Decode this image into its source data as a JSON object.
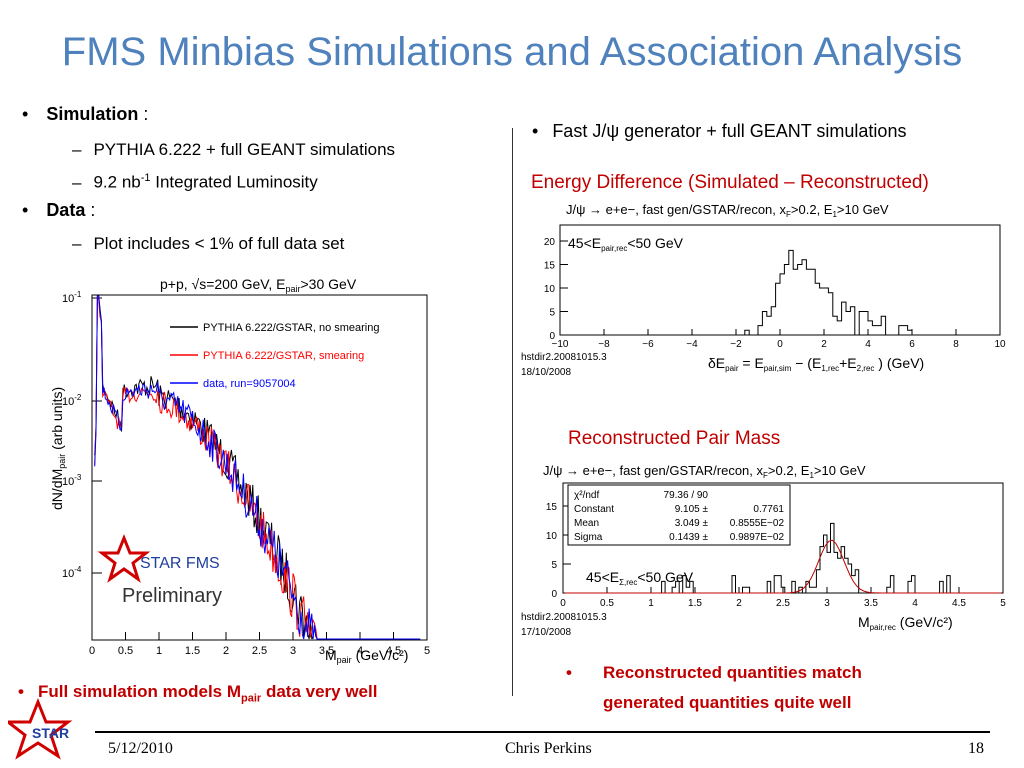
{
  "title": "FMS Minbias Simulations and Association Analysis",
  "left": {
    "simulation_label": "Simulation",
    "simulation_colon": " :",
    "sim_items": [
      "PYTHIA 6.222 + full GEANT simulations",
      "9.2 nb",
      "-1",
      " Integrated Luminosity"
    ],
    "data_label": "Data",
    "data_colon": " :",
    "data_items": [
      "Plot includes < 1% of full data set"
    ],
    "conclusion_pre": "Full simulation models M",
    "conclusion_sub": "pair",
    "conclusion_post": " data very well"
  },
  "right": {
    "bullet": "Fast J/ψ generator + full GEANT simulations",
    "energy_heading": "Energy Difference (Simulated – Reconstructed)",
    "mass_heading": "Reconstructed Pair Mass",
    "conclusion_line1": "Reconstructed quantities match",
    "conclusion_line2": "generated quantities quite well"
  },
  "plot_mpair": {
    "title": "p+p, √s=200 GeV, E",
    "title_sub": "pair",
    "title_post": ">30 GeV",
    "ylabel": "dN/dM",
    "ylabel_sub": "pair",
    "ylabel_post": " (arb units)",
    "xlabel": "M",
    "xlabel_sub": "pair",
    "xlabel_post": " (GeV/c²)",
    "legend": [
      "PYTHIA 6.222/GSTAR, no smearing",
      "PYTHIA 6.222/GSTAR, smearing",
      "data, run=9057004"
    ],
    "watermark_1": "STAR FMS",
    "watermark_2": "Preliminary",
    "x_ticks": [
      "0",
      "0.5",
      "1",
      "1.5",
      "2",
      "2.5",
      "3",
      "3.5",
      "4",
      "4.5",
      "5"
    ],
    "y_ticks": [
      "10",
      "10",
      "10",
      "10"
    ],
    "y_exps": [
      "-1",
      "-2",
      "-3",
      "-4"
    ],
    "series_colors": [
      "#000000",
      "#ff0000",
      "#0000ff"
    ]
  },
  "plot_energy": {
    "title": "J/ψ → e+e−, fast gen/GSTAR/recon, x",
    "title_mid": ">0.2, E",
    "title_post": ">10 GeV",
    "label": "45<E",
    "label_sub": "pair,rec",
    "label_post": "<50 GeV",
    "x_ticks": [
      "−10",
      "−8",
      "−6",
      "−4",
      "−2",
      "0",
      "2",
      "4",
      "6",
      "8",
      "10"
    ],
    "y_ticks": [
      "0",
      "5",
      "10",
      "15",
      "20"
    ],
    "file": "hstdir2.20081015.3",
    "date": "18/10/2008",
    "xlabel": "δE",
    "xlabel_rest": " = E",
    "xlabel_tail": " − (E",
    "xlabel_end": " ) (GeV)"
  },
  "plot_mass": {
    "title": "J/ψ → e+e−, fast gen/GSTAR/recon, x",
    "title_mid": ">0.2, E",
    "title_post": ">10 GeV",
    "stats": [
      [
        "χ²/ndf",
        "79.36   /   90",
        ""
      ],
      [
        "Constant",
        "9.105 ±",
        "0.7761"
      ],
      [
        "Mean",
        "3.049 ±",
        "0.8555E−02"
      ],
      [
        "Sigma",
        "0.1439 ±",
        "0.9897E−02"
      ]
    ],
    "label": "45<E",
    "label_sub": "Σ,rec",
    "label_post": "<50 GeV",
    "x_ticks": [
      "0",
      "0.5",
      "1",
      "1.5",
      "2",
      "2.5",
      "3",
      "3.5",
      "4",
      "4.5",
      "5"
    ],
    "y_ticks": [
      "0",
      "5",
      "10",
      "15"
    ],
    "file": "hstdir2.20081015.3",
    "date": "17/10/2008",
    "xlabel": "M",
    "xlabel_sub": "pair,rec",
    "xlabel_post": " (GeV/c²)"
  },
  "footer": {
    "date": "5/12/2010",
    "author": "Chris Perkins",
    "page": "18",
    "logo": "STAR"
  },
  "colors": {
    "title": "#4f81bd",
    "accent_red": "#c00000"
  }
}
